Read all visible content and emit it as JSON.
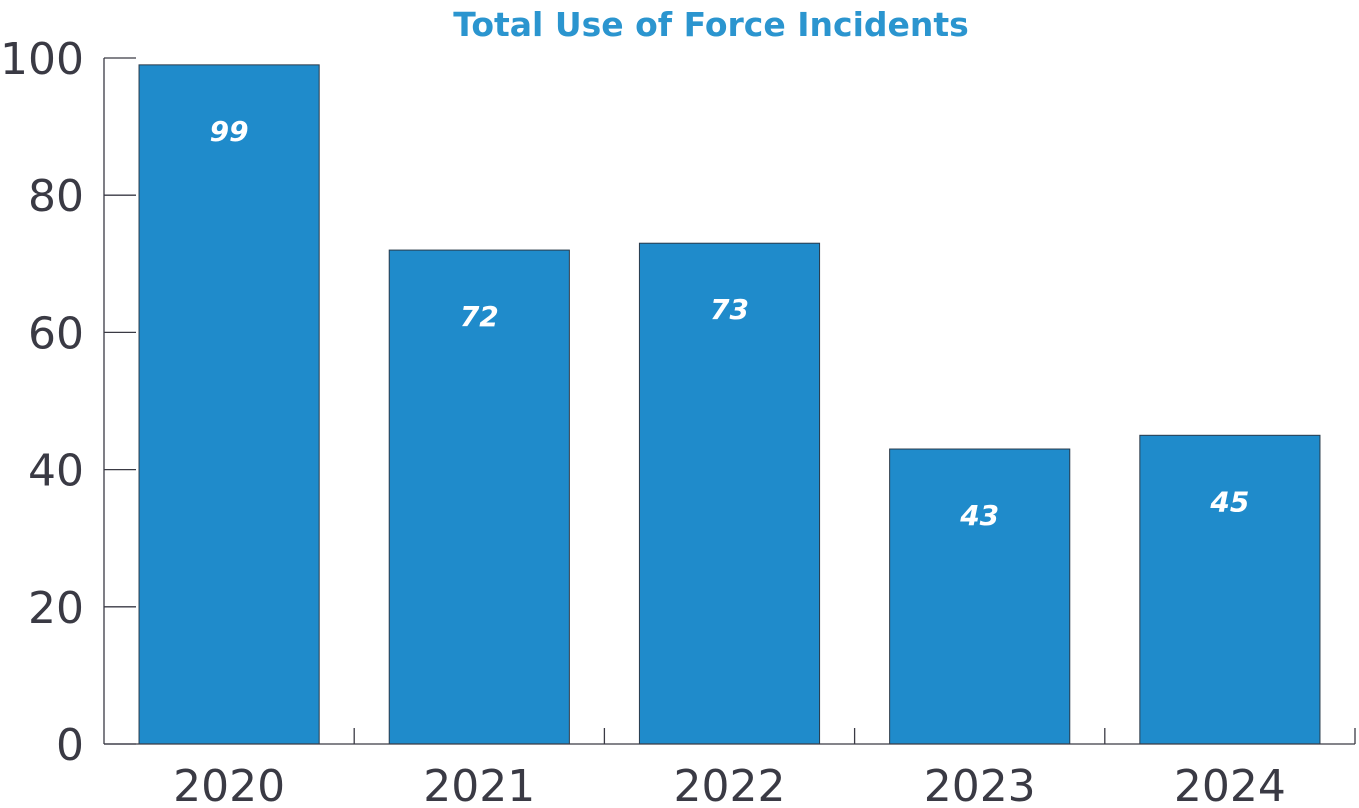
{
  "chart_data": {
    "type": "bar",
    "title": "Total Use of Force Incidents",
    "xlabel": "",
    "ylabel": "",
    "categories": [
      "2020",
      "2021",
      "2022",
      "2023",
      "2024"
    ],
    "values": [
      99,
      72,
      73,
      43,
      45
    ],
    "data_labels": [
      "99",
      "72",
      "73",
      "43",
      "45"
    ],
    "ylim": [
      0,
      100
    ],
    "yticks": [
      0,
      20,
      40,
      60,
      80,
      100
    ],
    "ytick_labels": [
      "0",
      "20",
      "40",
      "60",
      "80",
      "100"
    ],
    "grid": false,
    "legend": "none",
    "colors": {
      "bar": "#1f8bcb",
      "title": "#2b95cf",
      "axis": "#3a3a44"
    }
  }
}
